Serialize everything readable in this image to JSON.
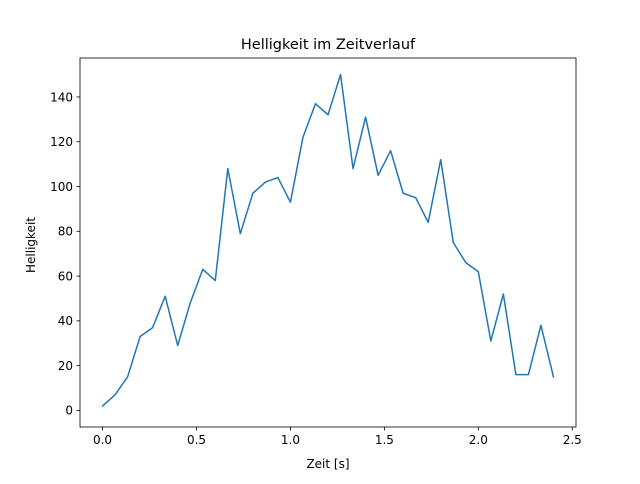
{
  "chart_data": {
    "type": "line",
    "title": "Helligkeit im Zeitverlauf",
    "xlabel": "Zeit [s]",
    "ylabel": "Helligkeit",
    "xlim": [
      -0.12,
      2.52
    ],
    "ylim": [
      -7.4,
      157.4
    ],
    "xticks": [
      0.0,
      0.5,
      1.0,
      1.5,
      2.0,
      2.5
    ],
    "xtick_labels": [
      "0.0",
      "0.5",
      "1.0",
      "1.5",
      "2.0",
      "2.5"
    ],
    "yticks": [
      0,
      20,
      40,
      60,
      80,
      100,
      120,
      140
    ],
    "ytick_labels": [
      "0",
      "20",
      "40",
      "60",
      "80",
      "100",
      "120",
      "140"
    ],
    "grid": false,
    "legend": "none",
    "series": [
      {
        "color": "#1f77b4",
        "x": [
          0.0,
          0.0667,
          0.1333,
          0.2,
          0.2667,
          0.3333,
          0.4,
          0.4667,
          0.5333,
          0.6,
          0.6667,
          0.7333,
          0.8,
          0.8667,
          0.9333,
          1.0,
          1.0667,
          1.1333,
          1.2,
          1.2667,
          1.3333,
          1.4,
          1.4667,
          1.5333,
          1.6,
          1.6667,
          1.7333,
          1.8,
          1.8667,
          1.9333,
          2.0,
          2.0667,
          2.1333,
          2.2,
          2.2667,
          2.3333,
          2.4
        ],
        "y": [
          2,
          7,
          15,
          33,
          37,
          51,
          29,
          48,
          63,
          58,
          108,
          79,
          97,
          102,
          104,
          93,
          122,
          137,
          132,
          150,
          108,
          131,
          105,
          116,
          97,
          95,
          84,
          112,
          75,
          66,
          62,
          31,
          52,
          16,
          16,
          38,
          15
        ]
      }
    ]
  }
}
